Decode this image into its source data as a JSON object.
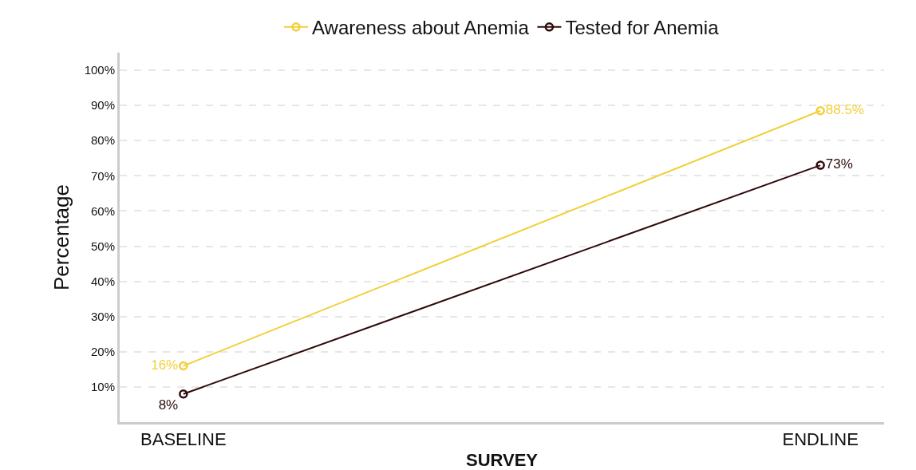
{
  "chart_data": {
    "type": "line",
    "xlabel": "SURVEY",
    "ylabel": "Percentage",
    "categories": [
      "BASELINE",
      "ENDLINE"
    ],
    "series": [
      {
        "name": "Awareness about Anemia",
        "color": "#f2cf3a",
        "values": [
          16,
          88.5
        ],
        "value_labels": [
          "16%",
          "88.5%"
        ]
      },
      {
        "name": "Tested for Anemia",
        "color": "#2e0a0a",
        "values": [
          8,
          73
        ],
        "value_labels": [
          "8%",
          "73%"
        ]
      }
    ],
    "ylim": [
      0,
      105
    ],
    "yticks": [
      {
        "value": 10,
        "label": "10%"
      },
      {
        "value": 20,
        "label": "20%"
      },
      {
        "value": 30,
        "label": "30%"
      },
      {
        "value": 40,
        "label": "40%"
      },
      {
        "value": 50,
        "label": "50%"
      },
      {
        "value": 60,
        "label": "60%"
      },
      {
        "value": 70,
        "label": "70%"
      },
      {
        "value": 80,
        "label": "80%"
      },
      {
        "value": 90,
        "label": "90%"
      },
      {
        "value": 100,
        "label": "100%"
      }
    ],
    "grid": "y",
    "legend": "top",
    "marker": "circle",
    "line_style": "solid"
  }
}
